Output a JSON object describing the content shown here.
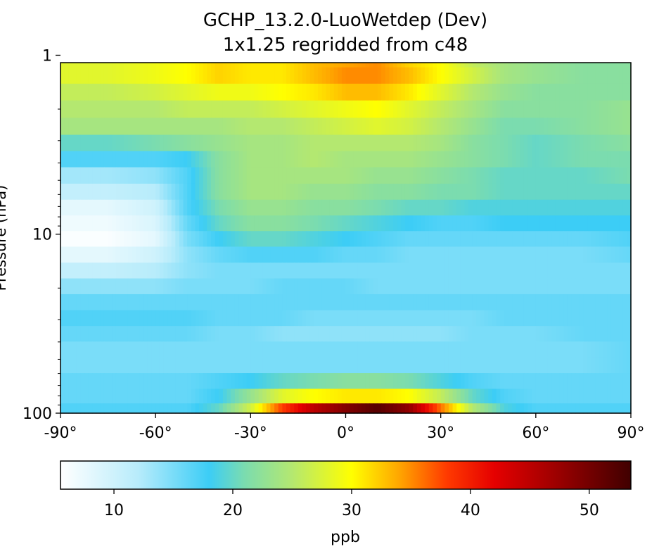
{
  "chart_data": {
    "type": "heatmap",
    "title": "GCHP_13.2.0-LuoWetdep (Dev)",
    "subtitle": "1x1.25 regridded from c48",
    "xlabel": "",
    "ylabel": "Pressure (hPa)",
    "x_ticks": [
      -90,
      -60,
      -30,
      0,
      30,
      60,
      90
    ],
    "x_tick_labels": [
      "-90°",
      "-60°",
      "-30°",
      "0°",
      "30°",
      "60°",
      "90°"
    ],
    "xlim": [
      -90,
      90
    ],
    "y_scale": "log",
    "y_inverted": true,
    "ylim": [
      1.1,
      100
    ],
    "y_ticks": [
      1,
      10,
      100
    ],
    "y_tick_labels": [
      "1",
      "10",
      "100"
    ],
    "colormap": "WhGrYlRd",
    "colorbar": {
      "label": "ppb",
      "vmin": 5.5,
      "vmax": 53.5,
      "ticks": [
        10,
        20,
        30,
        40,
        50
      ],
      "tick_labels": [
        "10",
        "20",
        "30",
        "40",
        "50"
      ],
      "stops": [
        {
          "value": 5.5,
          "color": "#ffffff"
        },
        {
          "value": 12,
          "color": "#b8ecfb"
        },
        {
          "value": 18,
          "color": "#3ccdf6"
        },
        {
          "value": 21,
          "color": "#7bdcaf"
        },
        {
          "value": 25,
          "color": "#b4e870"
        },
        {
          "value": 30,
          "color": "#ffff00"
        },
        {
          "value": 34,
          "color": "#ffa600"
        },
        {
          "value": 38,
          "color": "#ff3a00"
        },
        {
          "value": 42,
          "color": "#e50000"
        },
        {
          "value": 47,
          "color": "#a00000"
        },
        {
          "value": 53.5,
          "color": "#400000"
        }
      ]
    },
    "lat": [
      -90,
      -75,
      -60,
      -50,
      -40,
      -30,
      -20,
      -10,
      0,
      10,
      20,
      30,
      40,
      50,
      60,
      75,
      90
    ],
    "pressure_levels": [
      1.05,
      1.3,
      1.6,
      2.0,
      2.5,
      3.1,
      3.8,
      4.7,
      5.8,
      7.1,
      8.7,
      10.6,
      13.0,
      16.0,
      19.5,
      24.0,
      29.5,
      36.0,
      44.0,
      54.0,
      66.0,
      81.0,
      96.0
    ],
    "values": [
      [
        28,
        28,
        29,
        30,
        32,
        31,
        31,
        33,
        34,
        35,
        32,
        30,
        26,
        24,
        23,
        22,
        22
      ],
      [
        28,
        28,
        29,
        30,
        32,
        31,
        31,
        33,
        35,
        35,
        33,
        30,
        27,
        24,
        23,
        22,
        22
      ],
      [
        26,
        26,
        27,
        28,
        29,
        29,
        30,
        31,
        33,
        33,
        31,
        28,
        25,
        23,
        22,
        22,
        22
      ],
      [
        25,
        25,
        25,
        26,
        26,
        26,
        27,
        28,
        29,
        30,
        28,
        26,
        24,
        22,
        22,
        22,
        23
      ],
      [
        24,
        24,
        24,
        24,
        24,
        25,
        25,
        26,
        27,
        28,
        27,
        25,
        23,
        21,
        21,
        22,
        23
      ],
      [
        20,
        20,
        21,
        22,
        23,
        24,
        24,
        25,
        25,
        25,
        25,
        24,
        22,
        21,
        20,
        21,
        22
      ],
      [
        17,
        17,
        17,
        18,
        22,
        24,
        24,
        25,
        24,
        24,
        24,
        23,
        22,
        21,
        20,
        21,
        21
      ],
      [
        13,
        13,
        14,
        17,
        22,
        24,
        24,
        24,
        24,
        23,
        23,
        22,
        21,
        20,
        20,
        20,
        21
      ],
      [
        11,
        11,
        12,
        17,
        22,
        24,
        24,
        23,
        23,
        22,
        22,
        21,
        21,
        20,
        20,
        20,
        20
      ],
      [
        8,
        8,
        10,
        17,
        21,
        23,
        23,
        22,
        22,
        21,
        20,
        20,
        19,
        19,
        19,
        19,
        19
      ],
      [
        7,
        7,
        9,
        16,
        20,
        22,
        22,
        21,
        20,
        19,
        18,
        17,
        17,
        18,
        18,
        18,
        18
      ],
      [
        6,
        6,
        8,
        15,
        18,
        20,
        20,
        19,
        18,
        17,
        16,
        16,
        16,
        16,
        16,
        16,
        17
      ],
      [
        8,
        8,
        10,
        14,
        16,
        17,
        17,
        17,
        16,
        16,
        15,
        15,
        15,
        15,
        15,
        15,
        16
      ],
      [
        11,
        11,
        12,
        14,
        15,
        15,
        15,
        15,
        15,
        15,
        15,
        15,
        15,
        15,
        15,
        15,
        15
      ],
      [
        14,
        14,
        14,
        15,
        15,
        15,
        16,
        16,
        16,
        15,
        15,
        15,
        15,
        15,
        15,
        15,
        15
      ],
      [
        16,
        16,
        16,
        16,
        16,
        16,
        16,
        16,
        16,
        16,
        16,
        16,
        16,
        16,
        16,
        16,
        16
      ],
      [
        17,
        17,
        17,
        17,
        16,
        16,
        16,
        15,
        15,
        15,
        15,
        15,
        15,
        16,
        16,
        16,
        16
      ],
      [
        16,
        16,
        16,
        16,
        15,
        15,
        14,
        14,
        14,
        14,
        14,
        14,
        15,
        15,
        15,
        16,
        16
      ],
      [
        15,
        15,
        15,
        15,
        15,
        15,
        15,
        15,
        15,
        15,
        15,
        15,
        15,
        15,
        15,
        15,
        16
      ],
      [
        15,
        15,
        15,
        15,
        15,
        15,
        15,
        15,
        15,
        15,
        15,
        15,
        15,
        15,
        15,
        15,
        16
      ],
      [
        16,
        16,
        16,
        16,
        17,
        18,
        20,
        21,
        22,
        22,
        21,
        19,
        17,
        16,
        16,
        16,
        16
      ],
      [
        16,
        16,
        16,
        16,
        18,
        23,
        28,
        30,
        31,
        31,
        30,
        26,
        20,
        17,
        16,
        16,
        16
      ],
      [
        17,
        17,
        17,
        17,
        20,
        27,
        38,
        45,
        49,
        52,
        48,
        36,
        25,
        19,
        17,
        17,
        17
      ]
    ]
  }
}
